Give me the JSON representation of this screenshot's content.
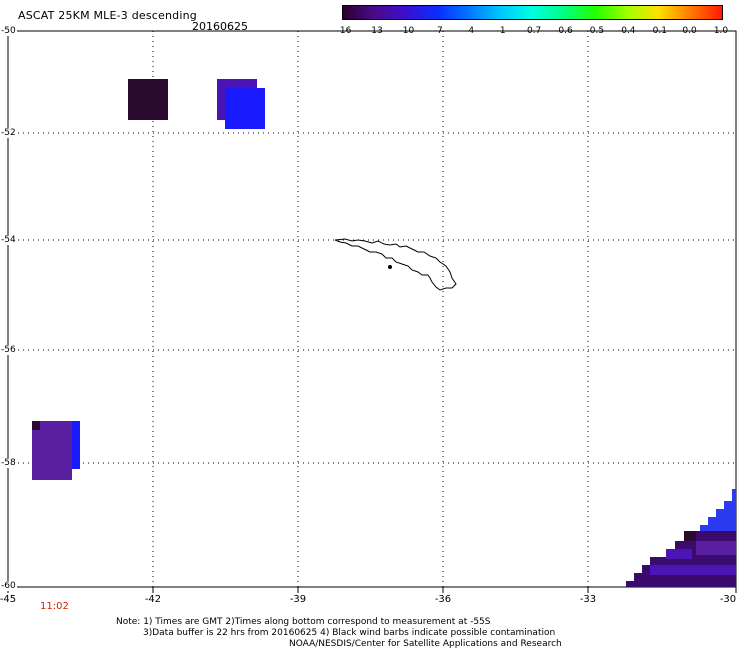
{
  "header": {
    "title": "ASCAT 25KM MLE-3 descending",
    "date": "20160625"
  },
  "colorbar": {
    "labels": [
      "-16",
      "-13",
      "-10",
      "-7",
      "-4",
      "-1",
      "-0.7",
      "-0.6",
      "-0.5",
      "-0.4",
      "-0.1",
      "0.0",
      "1.0"
    ],
    "colors": [
      "#2a0030",
      "#4b0a8a",
      "#3a0fd0",
      "#0a2dff",
      "#0078ff",
      "#00c8ff",
      "#00ffe0",
      "#00ff80",
      "#22ff00",
      "#a0ff00",
      "#ffe000",
      "#ff7a00",
      "#ff1a00"
    ]
  },
  "map": {
    "lat_labels": [
      "-50",
      "-52",
      "-54",
      "-56",
      "-58",
      "-60"
    ],
    "lon_labels": [
      "-45",
      "-42",
      "-39",
      "-36",
      "-33",
      "-30"
    ],
    "time_label": "11:02",
    "swath_colors": {
      "dark": "#2a0a2e",
      "purple": "#4b14b4",
      "violet": "#5a1ea0",
      "blue": "#1a1aff",
      "mid_blue": "#2a3aee",
      "deep_purple": "#3a0a6e"
    }
  },
  "notes": {
    "line1": "Note: 1) Times are GMT 2)Times along bottom correspond to measurement at -55S",
    "line2": "3)Data buffer is 22 hrs from 20160625 4) Black wind barbs indicate possible contamination",
    "line3": "NOAA/NESDIS/Center for Satellite Applications and Research"
  }
}
